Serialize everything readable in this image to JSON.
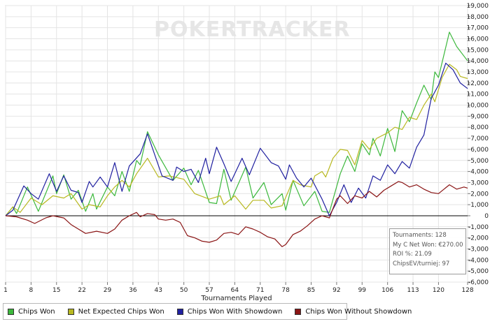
{
  "chart_data": {
    "type": "line",
    "watermark": "POKERTRACKER",
    "xlabel": "Tournaments Played",
    "ylabel": "",
    "x_ticks": [
      1,
      8,
      15,
      22,
      29,
      36,
      43,
      50,
      57,
      64,
      71,
      78,
      85,
      92,
      99,
      106,
      113,
      120,
      128
    ],
    "y_ticks": [
      19000,
      18000,
      17000,
      16000,
      15000,
      14000,
      13000,
      12000,
      11000,
      10000,
      9000,
      8000,
      7000,
      6000,
      5000,
      4000,
      3000,
      2000,
      1000,
      0,
      -1000,
      -2000,
      -3000,
      -4000,
      -5000,
      -6000
    ],
    "y_tick_labels": [
      "19,000",
      "18,000",
      "17,000",
      "16,000",
      "15,000",
      "14,000",
      "13,000",
      "12,000",
      "11,000",
      "10,000",
      "9,000",
      "8,000",
      "7,000",
      "6,000",
      "5,000",
      "4,000",
      "3,000",
      "2,000",
      "1,000",
      "0",
      "-1,000",
      "-2,000",
      "-3,000",
      "-4,000",
      "-5,000",
      "-6,000"
    ],
    "xlim": [
      1,
      128
    ],
    "ylim": [
      -6000,
      19000
    ],
    "grid": true,
    "legend_position": "bottom",
    "series": [
      {
        "name": "Chips Won",
        "color": "#3cb83c",
        "points": [
          [
            1,
            0
          ],
          [
            3,
            800
          ],
          [
            4,
            200
          ],
          [
            7,
            2600
          ],
          [
            10,
            400
          ],
          [
            14,
            3600
          ],
          [
            15,
            2000
          ],
          [
            17,
            3700
          ],
          [
            19,
            1500
          ],
          [
            21,
            2300
          ],
          [
            23,
            400
          ],
          [
            25,
            2000
          ],
          [
            26,
            600
          ],
          [
            29,
            2600
          ],
          [
            31,
            1800
          ],
          [
            33,
            4000
          ],
          [
            35,
            2200
          ],
          [
            37,
            5000
          ],
          [
            38,
            4600
          ],
          [
            40,
            7600
          ],
          [
            43,
            5500
          ],
          [
            47,
            3200
          ],
          [
            50,
            4300
          ],
          [
            52,
            2800
          ],
          [
            54,
            4100
          ],
          [
            57,
            1200
          ],
          [
            59,
            1100
          ],
          [
            61,
            4200
          ],
          [
            63,
            1400
          ],
          [
            67,
            4400
          ],
          [
            69,
            1600
          ],
          [
            72,
            3000
          ],
          [
            74,
            1000
          ],
          [
            77,
            2000
          ],
          [
            78,
            500
          ],
          [
            80,
            3200
          ],
          [
            83,
            900
          ],
          [
            86,
            2200
          ],
          [
            88,
            400
          ],
          [
            90,
            300
          ],
          [
            93,
            3800
          ],
          [
            95,
            5400
          ],
          [
            97,
            4000
          ],
          [
            99,
            6500
          ],
          [
            101,
            5500
          ],
          [
            102,
            7000
          ],
          [
            104,
            5400
          ],
          [
            106,
            7900
          ],
          [
            108,
            5800
          ],
          [
            110,
            9500
          ],
          [
            112,
            8500
          ],
          [
            114,
            10200
          ],
          [
            116,
            11800
          ],
          [
            118,
            10500
          ],
          [
            119,
            13000
          ],
          [
            120,
            12500
          ],
          [
            123,
            16600
          ],
          [
            125,
            15300
          ],
          [
            128,
            14000
          ]
        ]
      },
      {
        "name": "Net Expected Chips Won",
        "color": "#b8b820",
        "points": [
          [
            1,
            0
          ],
          [
            3,
            800
          ],
          [
            5,
            300
          ],
          [
            8,
            1600
          ],
          [
            11,
            1000
          ],
          [
            14,
            1800
          ],
          [
            17,
            1600
          ],
          [
            19,
            2000
          ],
          [
            22,
            600
          ],
          [
            24,
            1000
          ],
          [
            27,
            800
          ],
          [
            29,
            1800
          ],
          [
            31,
            2600
          ],
          [
            33,
            3200
          ],
          [
            35,
            2600
          ],
          [
            37,
            3800
          ],
          [
            40,
            5200
          ],
          [
            43,
            3500
          ],
          [
            46,
            3600
          ],
          [
            50,
            3300
          ],
          [
            53,
            2000
          ],
          [
            57,
            1500
          ],
          [
            60,
            1800
          ],
          [
            61,
            1000
          ],
          [
            64,
            1800
          ],
          [
            67,
            600
          ],
          [
            69,
            1400
          ],
          [
            72,
            1400
          ],
          [
            74,
            700
          ],
          [
            77,
            900
          ],
          [
            80,
            3200
          ],
          [
            82,
            2800
          ],
          [
            85,
            2600
          ],
          [
            86,
            3600
          ],
          [
            88,
            4000
          ],
          [
            89,
            3500
          ],
          [
            91,
            5200
          ],
          [
            93,
            6000
          ],
          [
            95,
            5900
          ],
          [
            97,
            4600
          ],
          [
            99,
            6800
          ],
          [
            101,
            6000
          ],
          [
            103,
            7000
          ],
          [
            106,
            7500
          ],
          [
            108,
            8000
          ],
          [
            110,
            7800
          ],
          [
            112,
            8900
          ],
          [
            114,
            8700
          ],
          [
            116,
            10000
          ],
          [
            118,
            11000
          ],
          [
            119,
            10300
          ],
          [
            121,
            12500
          ],
          [
            123,
            13700
          ],
          [
            125,
            13200
          ],
          [
            126,
            12600
          ],
          [
            128,
            12400
          ]
        ]
      },
      {
        "name": "Chips Won With Showdown",
        "color": "#2020a0",
        "points": [
          [
            1,
            0
          ],
          [
            3,
            500
          ],
          [
            6,
            2700
          ],
          [
            8,
            2000
          ],
          [
            10,
            1500
          ],
          [
            13,
            3800
          ],
          [
            15,
            2200
          ],
          [
            17,
            3600
          ],
          [
            19,
            2300
          ],
          [
            21,
            2100
          ],
          [
            22,
            1200
          ],
          [
            24,
            3100
          ],
          [
            25,
            2600
          ],
          [
            27,
            3500
          ],
          [
            29,
            2600
          ],
          [
            31,
            4800
          ],
          [
            33,
            2200
          ],
          [
            35,
            4500
          ],
          [
            38,
            5600
          ],
          [
            40,
            7400
          ],
          [
            44,
            3600
          ],
          [
            47,
            3200
          ],
          [
            48,
            4400
          ],
          [
            50,
            4000
          ],
          [
            52,
            4200
          ],
          [
            54,
            3000
          ],
          [
            56,
            5200
          ],
          [
            57,
            3800
          ],
          [
            59,
            6200
          ],
          [
            61,
            4700
          ],
          [
            63,
            3100
          ],
          [
            66,
            5200
          ],
          [
            68,
            3700
          ],
          [
            71,
            6100
          ],
          [
            74,
            4800
          ],
          [
            76,
            4500
          ],
          [
            78,
            3300
          ],
          [
            79,
            4600
          ],
          [
            81,
            3400
          ],
          [
            83,
            2600
          ],
          [
            85,
            3400
          ],
          [
            88,
            1500
          ],
          [
            90,
            0
          ],
          [
            92,
            1200
          ],
          [
            94,
            2800
          ],
          [
            96,
            1200
          ],
          [
            98,
            2500
          ],
          [
            100,
            1600
          ],
          [
            102,
            3600
          ],
          [
            104,
            3200
          ],
          [
            106,
            4600
          ],
          [
            108,
            3800
          ],
          [
            110,
            4900
          ],
          [
            112,
            4300
          ],
          [
            114,
            6200
          ],
          [
            116,
            7300
          ],
          [
            118,
            10600
          ],
          [
            120,
            11800
          ],
          [
            122,
            13800
          ],
          [
            124,
            13200
          ],
          [
            126,
            12000
          ],
          [
            128,
            11500
          ]
        ]
      },
      {
        "name": "Chips Won Without Showdown",
        "color": "#8a1414",
        "points": [
          [
            1,
            0
          ],
          [
            4,
            -100
          ],
          [
            7,
            -400
          ],
          [
            9,
            -700
          ],
          [
            12,
            -200
          ],
          [
            14,
            0
          ],
          [
            17,
            -200
          ],
          [
            19,
            -800
          ],
          [
            21,
            -1200
          ],
          [
            23,
            -1600
          ],
          [
            26,
            -1400
          ],
          [
            29,
            -1600
          ],
          [
            31,
            -1200
          ],
          [
            33,
            -400
          ],
          [
            35,
            0
          ],
          [
            37,
            300
          ],
          [
            38,
            -100
          ],
          [
            40,
            200
          ],
          [
            42,
            100
          ],
          [
            43,
            -300
          ],
          [
            45,
            -400
          ],
          [
            47,
            -300
          ],
          [
            49,
            -600
          ],
          [
            51,
            -1800
          ],
          [
            53,
            -2000
          ],
          [
            55,
            -2300
          ],
          [
            57,
            -2400
          ],
          [
            59,
            -2200
          ],
          [
            61,
            -1600
          ],
          [
            63,
            -1500
          ],
          [
            65,
            -1700
          ],
          [
            67,
            -1000
          ],
          [
            69,
            -1200
          ],
          [
            71,
            -1500
          ],
          [
            73,
            -1900
          ],
          [
            75,
            -2100
          ],
          [
            77,
            -2800
          ],
          [
            78,
            -2600
          ],
          [
            80,
            -1700
          ],
          [
            82,
            -1400
          ],
          [
            84,
            -900
          ],
          [
            86,
            -300
          ],
          [
            88,
            0
          ],
          [
            90,
            -200
          ],
          [
            92,
            1500
          ],
          [
            93,
            1800
          ],
          [
            95,
            1100
          ],
          [
            97,
            1800
          ],
          [
            99,
            1600
          ],
          [
            101,
            2200
          ],
          [
            103,
            1700
          ],
          [
            105,
            2300
          ],
          [
            107,
            2700
          ],
          [
            109,
            3100
          ],
          [
            110,
            3000
          ],
          [
            112,
            2600
          ],
          [
            114,
            2800
          ],
          [
            116,
            2400
          ],
          [
            118,
            2100
          ],
          [
            120,
            2000
          ],
          [
            123,
            2800
          ],
          [
            125,
            2400
          ],
          [
            127,
            2600
          ],
          [
            128,
            2500
          ]
        ]
      }
    ]
  },
  "stats": {
    "tournaments": "Tournaments: 128",
    "net_won": "My C Net Won: €270.00",
    "roi": "ROI %: 21.09",
    "chips_ev": "ChipsEV/turniej: 97"
  }
}
